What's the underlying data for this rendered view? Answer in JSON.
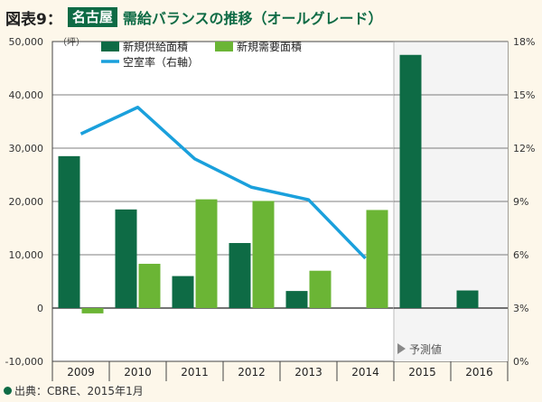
{
  "header": {
    "figure_label": "図表9：",
    "city": "名古屋",
    "title": "需給バランスの推移（オールグレード）"
  },
  "source": "出典：CBRE、2015年1月",
  "forecast_label": "予測値",
  "colors": {
    "supply": "#0e6b45",
    "demand": "#6bb535",
    "vacancy": "#1aa0dc",
    "background": "#fdf7ea",
    "plot_bg": "#ffffff"
  },
  "chart_data": {
    "type": "bar",
    "title": "需給バランスの推移（オールグレード）",
    "categories": [
      "2009",
      "2010",
      "2011",
      "2012",
      "2013",
      "2014",
      "2015",
      "2016"
    ],
    "series": [
      {
        "name": "新規供給面積",
        "type": "bar",
        "axis": "left",
        "values": [
          28500,
          18500,
          6000,
          12200,
          3200,
          0,
          47500,
          3300
        ]
      },
      {
        "name": "新規需要面積",
        "type": "bar",
        "axis": "left",
        "values": [
          -1000,
          8300,
          20400,
          20100,
          7000,
          18400,
          null,
          null
        ]
      },
      {
        "name": "空室率（右軸）",
        "type": "line",
        "axis": "right",
        "values": [
          12.8,
          14.3,
          11.4,
          9.8,
          9.1,
          5.8,
          null,
          null
        ]
      }
    ],
    "y_unit": "（坪）",
    "ylim": [
      -10000,
      50000
    ],
    "yticks": [
      "50,000",
      "40,000",
      "30,000",
      "20,000",
      "10,000",
      "0",
      "-10,000"
    ],
    "y2lim": [
      0,
      18
    ],
    "y2ticks": [
      "18%",
      "15%",
      "12%",
      "9%",
      "6%",
      "3%",
      "0%"
    ],
    "forecast_start": "2015"
  }
}
